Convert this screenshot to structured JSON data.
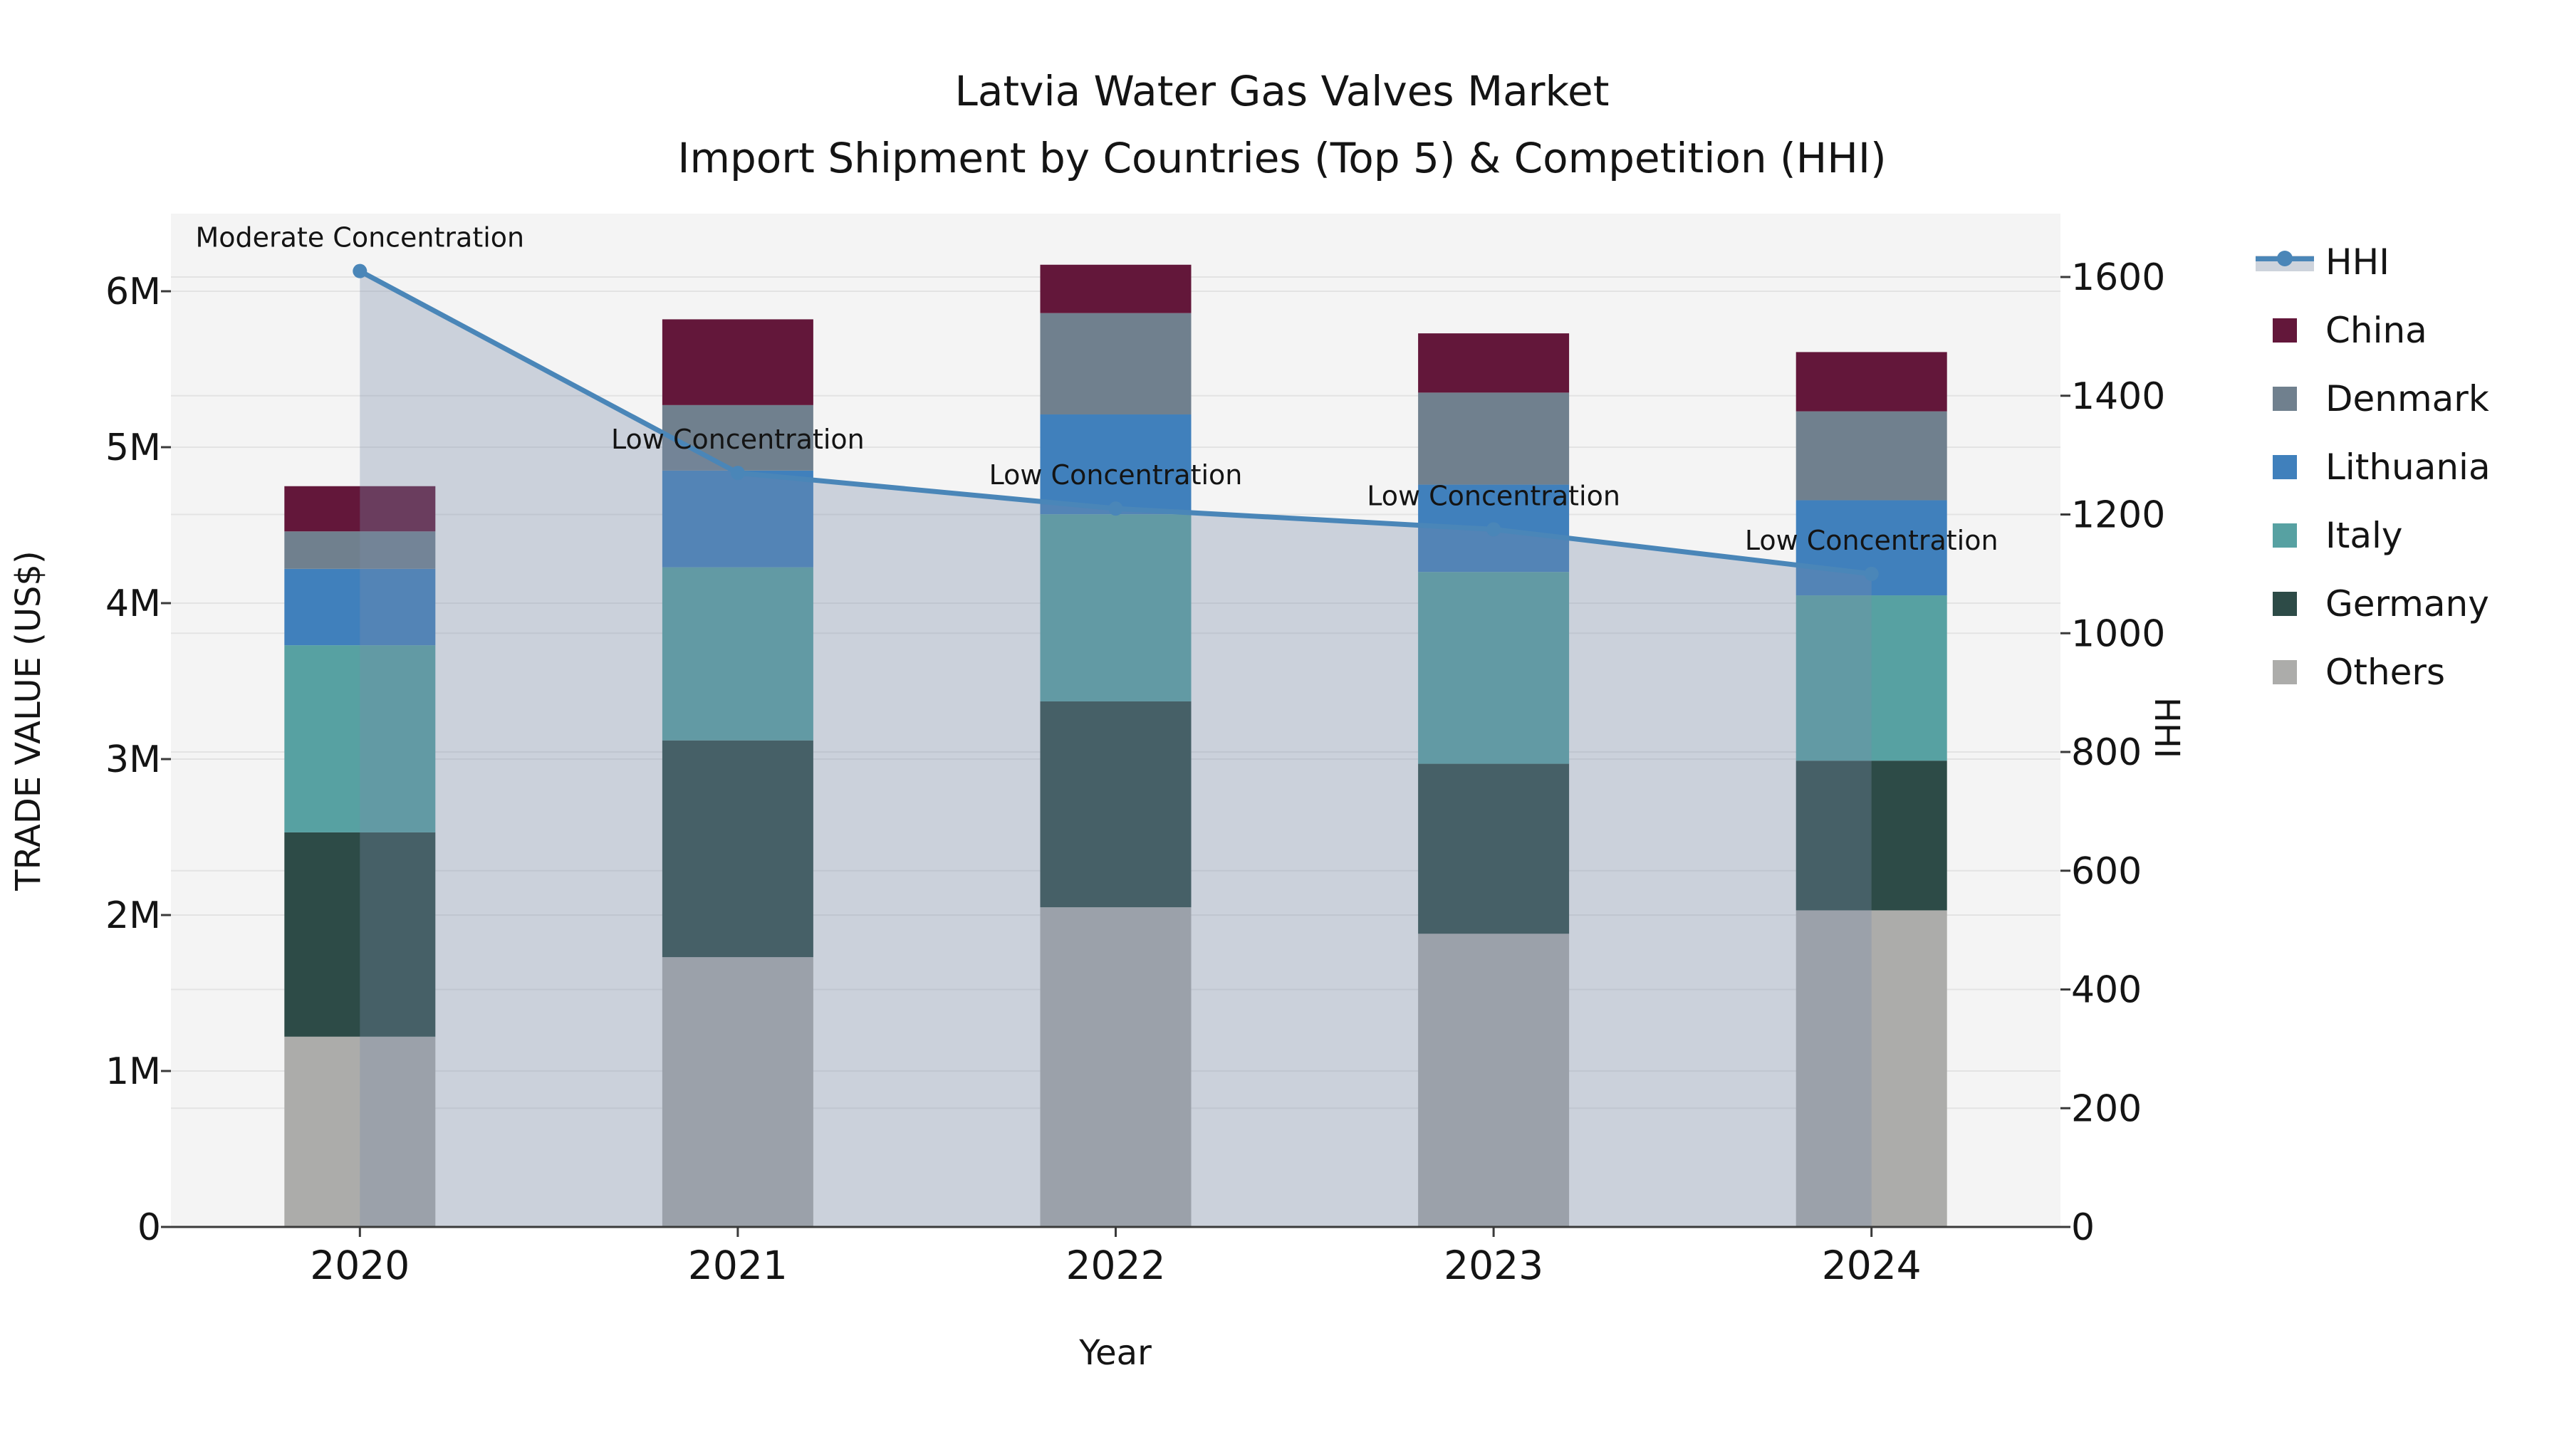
{
  "title": {
    "line1": "Latvia Water Gas Valves Market",
    "line2": "Import Shipment by Countries (Top 5) & Competition (HHI)"
  },
  "axes": {
    "x_label": "Year",
    "y_left_label": "TRADE VALUE (US$)",
    "y_right_label": "HHI",
    "x_ticks": [
      "2020",
      "2021",
      "2022",
      "2023",
      "2024"
    ],
    "y_left_ticks": [
      "0",
      "1M",
      "2M",
      "3M",
      "4M",
      "5M",
      "6M"
    ],
    "y_right_ticks": [
      "0",
      "200",
      "400",
      "600",
      "800",
      "1000",
      "1200",
      "1400",
      "1600"
    ]
  },
  "legend": {
    "items": [
      {
        "label": "HHI",
        "type": "line",
        "color": "#4a86b8"
      },
      {
        "label": "China",
        "type": "patch",
        "color": "#63173a"
      },
      {
        "label": "Denmark",
        "type": "patch",
        "color": "#70808e"
      },
      {
        "label": "Lithuania",
        "type": "patch",
        "color": "#4080bc"
      },
      {
        "label": "Italy",
        "type": "patch",
        "color": "#57a1a2"
      },
      {
        "label": "Germany",
        "type": "patch",
        "color": "#2d4b47"
      },
      {
        "label": "Others",
        "type": "patch",
        "color": "#acacaa"
      }
    ]
  },
  "chart_data": {
    "type": "bar",
    "subtype": "stacked-bars-with-line-overlay",
    "title": "Latvia Water Gas Valves Market  Import Shipment by Countries (Top 5) & Competition (HHI)",
    "xlabel": "Year",
    "ylabel_left": "TRADE VALUE (US$)",
    "ylabel_right": "HHI",
    "categories": [
      "2020",
      "2021",
      "2022",
      "2023",
      "2024"
    ],
    "value_unit": "million US$",
    "stack_order_bottom_to_top": [
      "Others",
      "Germany",
      "Italy",
      "Lithuania",
      "Denmark",
      "China"
    ],
    "series": [
      {
        "name": "Others",
        "color": "#acacaa",
        "values": [
          1.22,
          1.73,
          2.05,
          1.88,
          2.03
        ]
      },
      {
        "name": "Germany",
        "color": "#2d4b47",
        "values": [
          1.31,
          1.39,
          1.32,
          1.09,
          0.96
        ]
      },
      {
        "name": "Italy",
        "color": "#57a1a2",
        "values": [
          1.2,
          1.11,
          1.2,
          1.23,
          1.06
        ]
      },
      {
        "name": "Lithuania",
        "color": "#4080bc",
        "values": [
          0.49,
          0.62,
          0.64,
          0.56,
          0.61
        ]
      },
      {
        "name": "Denmark",
        "color": "#70808e",
        "values": [
          0.24,
          0.42,
          0.65,
          0.59,
          0.57
        ]
      },
      {
        "name": "China",
        "color": "#63173a",
        "values": [
          0.29,
          0.55,
          0.31,
          0.38,
          0.38
        ]
      }
    ],
    "bar_totals": [
      4.75,
      5.82,
      6.17,
      5.73,
      5.61
    ],
    "hhi_line": {
      "name": "HHI",
      "values": [
        1610,
        1270,
        1210,
        1175,
        1100
      ],
      "line_color": "#4a86b8",
      "fill_color": "rgba(120,140,170,0.33)",
      "fill_under_line": true
    },
    "annotations": [
      "Moderate Concentration",
      "Low Concentration",
      "Low Concentration",
      "Low Concentration",
      "Low Concentration"
    ],
    "ylim_left_millions": [
      0,
      6.5
    ],
    "ylim_right": [
      0,
      1706
    ],
    "grid": true,
    "plot_background": "#f4f4f4",
    "grid_color": "#e3e3e3",
    "spine_color": "#3a3a3a",
    "legend_position": "right-outside"
  }
}
